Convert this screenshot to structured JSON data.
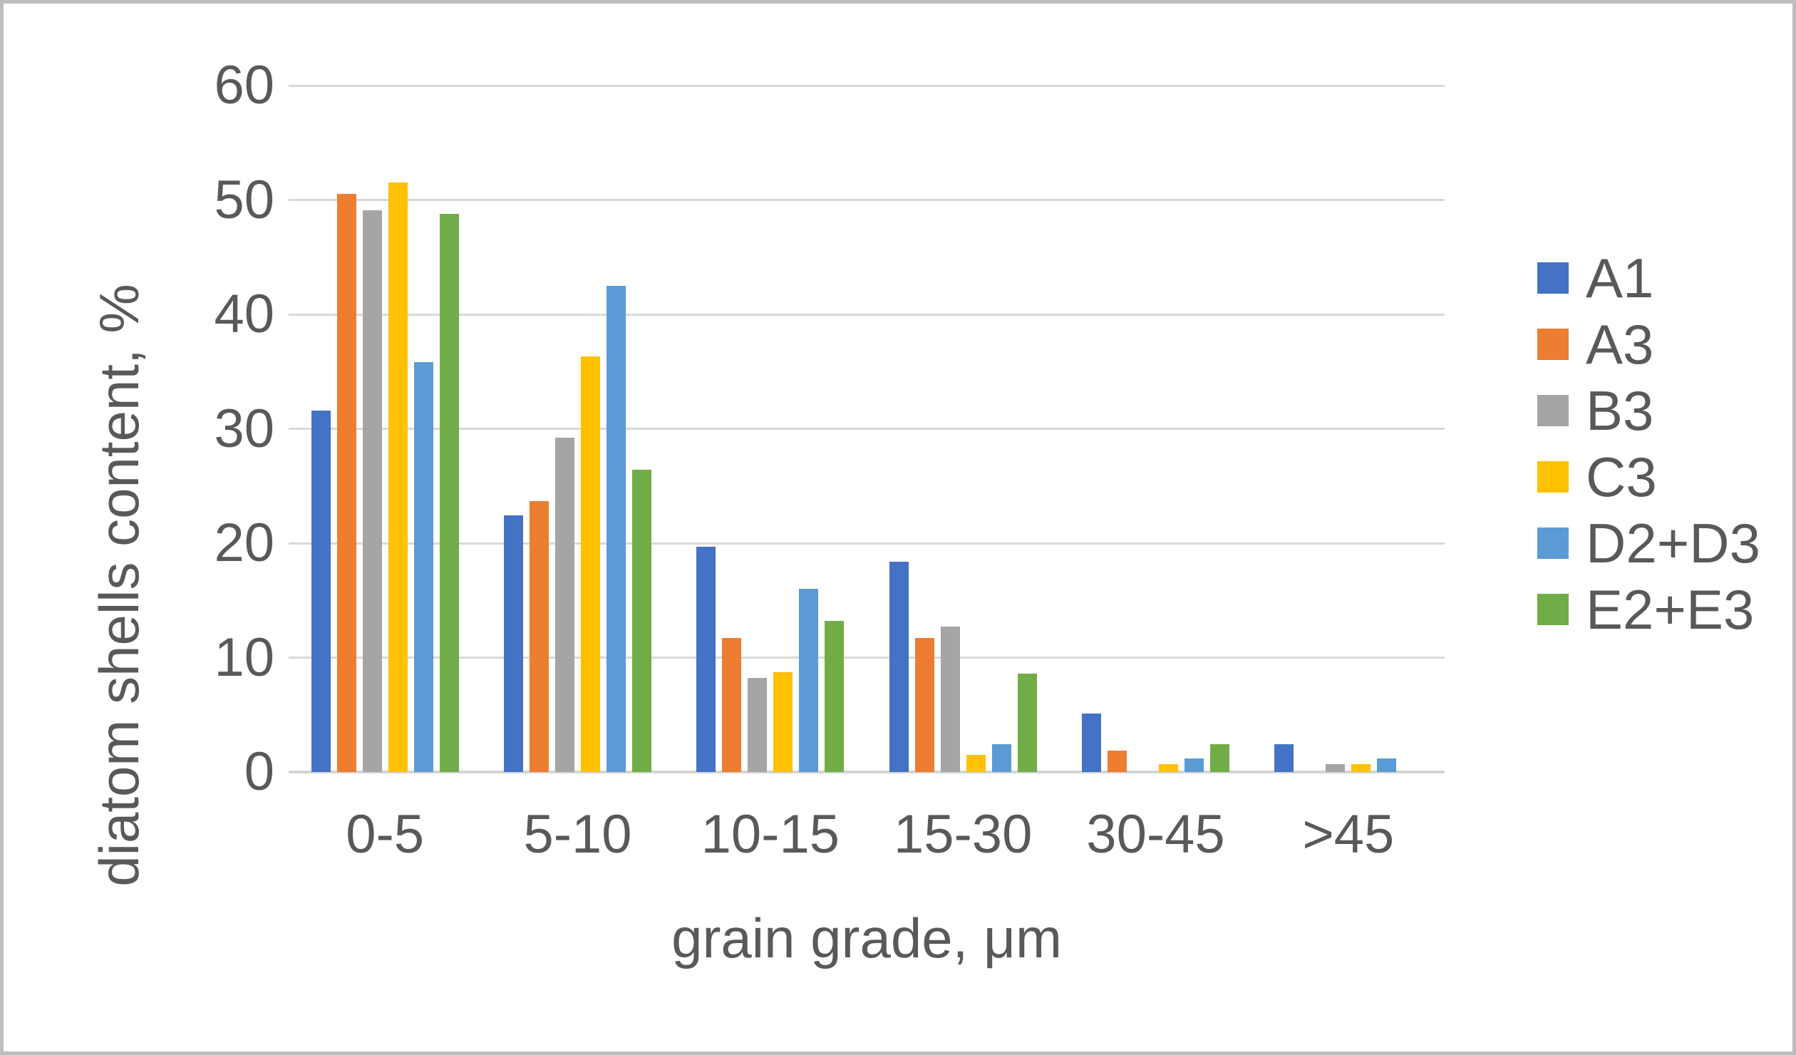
{
  "figure": {
    "background": "#ffffff",
    "border_color": "#bdbdbd",
    "text_color": "#595959",
    "gridline_color": "#d9d9d9",
    "axis_line_color": "#d4d4d4"
  },
  "chart_data": {
    "type": "bar",
    "title": "",
    "xlabel": "grain grade, μm",
    "ylabel": "diatom shells content, %",
    "ylim": [
      0,
      60
    ],
    "yticks": [
      0,
      10,
      20,
      30,
      40,
      50,
      60
    ],
    "grid": true,
    "legend_position": "right",
    "categories": [
      "0-5",
      "5-10",
      "10-15",
      "15-30",
      "30-45",
      ">45"
    ],
    "series": [
      {
        "name": "A1",
        "color": "#4472c4",
        "values": [
          31.6,
          22.4,
          19.7,
          18.4,
          5.1,
          2.4
        ]
      },
      {
        "name": "A3",
        "color": "#ed7d31",
        "values": [
          50.5,
          23.7,
          11.7,
          11.7,
          1.9,
          0
        ]
      },
      {
        "name": "B3",
        "color": "#a5a5a5",
        "values": [
          49.1,
          29.2,
          8.2,
          12.7,
          0,
          0.7
        ]
      },
      {
        "name": "C3",
        "color": "#ffc000",
        "values": [
          51.5,
          36.3,
          8.7,
          1.5,
          0.7,
          0.7
        ]
      },
      {
        "name": "D2+D3",
        "color": "#5b9bd5",
        "values": [
          35.8,
          42.5,
          16.0,
          2.4,
          1.2,
          1.2
        ]
      },
      {
        "name": "E2+E3",
        "color": "#70ad47",
        "values": [
          48.8,
          26.4,
          13.2,
          8.6,
          2.4,
          0
        ]
      }
    ]
  }
}
